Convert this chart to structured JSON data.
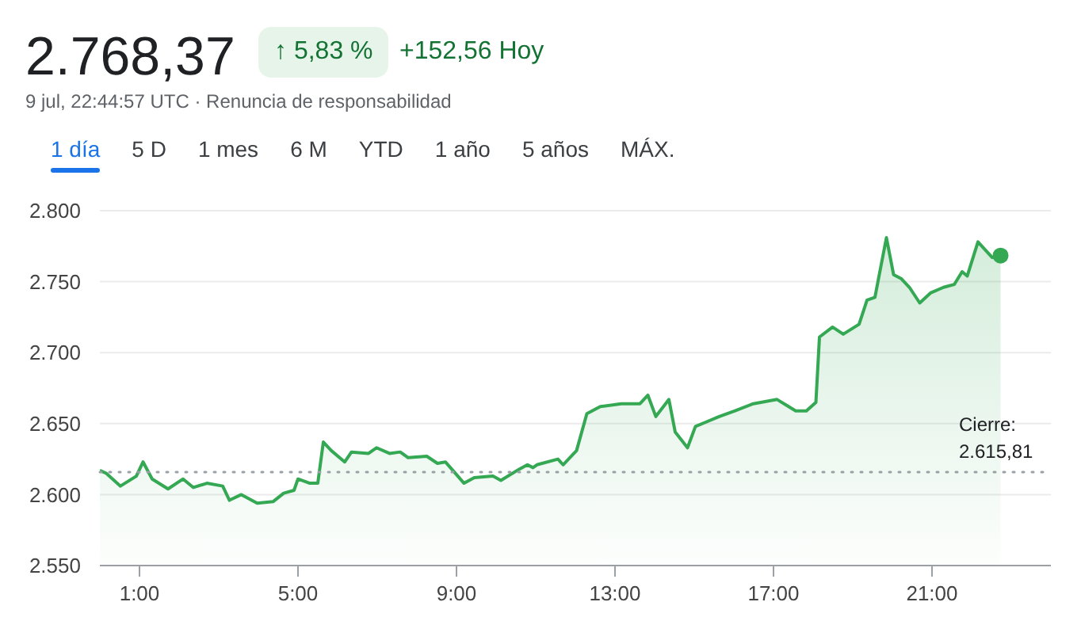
{
  "chart_data": {
    "type": "area",
    "title": "2.768,37",
    "annotations": [
      "↑ 5,83 %",
      "+152,56 Hoy",
      "9 jul, 22:44:57 UTC · Renuncia de responsabilidad",
      "1 día",
      "5 D",
      "1 mes",
      "6 M",
      "YTD",
      "1 año",
      "5 años",
      "MÁX."
    ],
    "x": [
      0.0,
      0.16,
      0.52,
      0.92,
      1.09,
      1.32,
      1.72,
      2.1,
      2.36,
      2.7,
      3.1,
      3.27,
      3.57,
      3.97,
      4.37,
      4.64,
      4.9,
      5.0,
      5.3,
      5.5,
      5.64,
      5.84,
      6.18,
      6.35,
      6.78,
      6.98,
      7.31,
      7.58,
      7.78,
      8.25,
      8.52,
      8.72,
      9.19,
      9.45,
      9.92,
      10.12,
      10.59,
      10.79,
      10.93,
      11.03,
      11.56,
      11.69,
      12.03,
      12.29,
      12.63,
      13.16,
      13.63,
      13.83,
      14.03,
      14.36,
      14.52,
      14.83,
      15.03,
      15.29,
      15.63,
      16.03,
      16.49,
      17.09,
      17.56,
      17.83,
      18.07,
      18.16,
      18.49,
      18.76,
      19.16,
      19.36,
      19.56,
      19.67,
      19.85,
      20.03,
      20.23,
      20.43,
      20.69,
      20.96,
      21.29,
      21.56,
      21.76,
      21.89,
      22.16,
      22.52,
      22.73
    ],
    "series": [
      {
        "color": "#34a853",
        "values": [
          2617,
          2615,
          2606,
          2613,
          2623,
          2611,
          2604,
          2611,
          2605,
          2608,
          2606,
          2596,
          2600,
          2594,
          2595,
          2601,
          2603,
          2611,
          2608,
          2608,
          2637,
          2631,
          2623,
          2630,
          2629,
          2633,
          2629,
          2630,
          2626,
          2627,
          2622,
          2623,
          2608,
          2612,
          2613,
          2610,
          2618,
          2621,
          2619,
          2621,
          2625,
          2621,
          2631,
          2657,
          2662,
          2664,
          2664,
          2670,
          2655,
          2667,
          2644,
          2633,
          2648,
          2651,
          2655,
          2659,
          2664,
          2667,
          2659,
          2659,
          2665,
          2711,
          2718,
          2713,
          2720,
          2737,
          2739,
          2755,
          2781,
          2755,
          2752,
          2746,
          2735,
          2742,
          2746,
          2748,
          2757,
          2754,
          2778,
          2767,
          2768.37
        ]
      }
    ],
    "xlim": [
      0,
      24
    ],
    "xticks": [
      {
        "value": 1,
        "label": "1:00"
      },
      {
        "value": 5,
        "label": "5:00"
      },
      {
        "value": 9,
        "label": "9:00"
      },
      {
        "value": 13,
        "label": "13:00"
      },
      {
        "value": 17,
        "label": "17:00"
      },
      {
        "value": 21,
        "label": "21:00"
      }
    ],
    "ylim": [
      2550,
      2800
    ],
    "yticks": [
      {
        "value": 2550,
        "label": "2.550"
      },
      {
        "value": 2600,
        "label": "2.600"
      },
      {
        "value": 2650,
        "label": "2.650"
      },
      {
        "value": 2700,
        "label": "2.700"
      },
      {
        "value": 2750,
        "label": "2.750"
      },
      {
        "value": 2800,
        "label": "2.800"
      }
    ],
    "ref_lines": [
      {
        "axis": "y",
        "value": 2615.81,
        "label": "Cierre: 2.615,81",
        "color": "#9aa0a6",
        "line_style": "dotted"
      }
    ],
    "grid": "y",
    "legend": false
  }
}
